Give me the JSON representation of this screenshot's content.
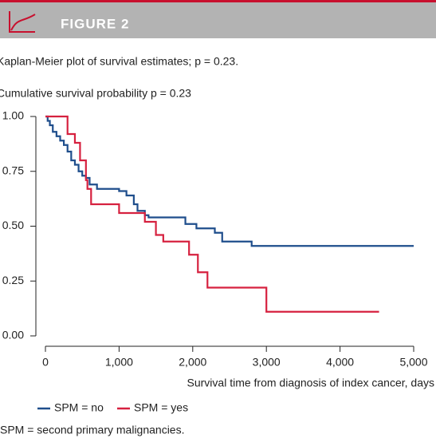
{
  "header": {
    "label": "FIGURE 2"
  },
  "caption": "Kaplan-Meier plot of survival estimates; p = 0.23.",
  "chart_data": {
    "type": "step",
    "title": "Cumulative survival probability p = 0.23",
    "x_label": "Survival time from diagnosis of index cancer, days",
    "xlim": [
      0,
      5000
    ],
    "xticks": [
      0,
      {
        "value": 1000,
        "label": "1,000"
      },
      {
        "value": 2000,
        "label": "2,000"
      },
      {
        "value": 3000,
        "label": "3,000"
      },
      {
        "value": 4000,
        "label": "4,000"
      },
      {
        "value": 5000,
        "label": "5,000"
      }
    ],
    "ylim": [
      0,
      1
    ],
    "yticks": [
      {
        "value": 0,
        "label": "0.00"
      },
      {
        "value": 0.25,
        "label": "0.25"
      },
      {
        "value": 0.5,
        "label": "0.50"
      },
      {
        "value": 0.75,
        "label": "0.75"
      },
      {
        "value": 1,
        "label": "1.00"
      }
    ],
    "series": [
      {
        "name": "SPM = no",
        "color": "#1f4e8c",
        "x": [
          0,
          30,
          60,
          100,
          150,
          200,
          250,
          300,
          350,
          400,
          450,
          500,
          550,
          600,
          700,
          1000,
          1100,
          1200,
          1250,
          1350,
          1400,
          1900,
          2050,
          2300,
          2400,
          2800,
          5000
        ],
        "values": [
          1,
          0.98,
          0.96,
          0.93,
          0.91,
          0.89,
          0.87,
          0.84,
          0.8,
          0.78,
          0.75,
          0.73,
          0.72,
          0.69,
          0.67,
          0.66,
          0.64,
          0.6,
          0.57,
          0.55,
          0.54,
          0.51,
          0.49,
          0.47,
          0.43,
          0.41,
          0.41
        ]
      },
      {
        "name": "SPM = yes",
        "color": "#d6213f",
        "x": [
          0,
          300,
          400,
          470,
          550,
          570,
          620,
          1000,
          1350,
          1500,
          1600,
          1950,
          2070,
          2200,
          3000,
          4530
        ],
        "values": [
          1,
          0.92,
          0.88,
          0.8,
          0.71,
          0.67,
          0.6,
          0.56,
          0.52,
          0.46,
          0.43,
          0.37,
          0.29,
          0.22,
          0.11,
          0.11
        ]
      }
    ]
  },
  "footnote": "SPM = second primary malignancies."
}
